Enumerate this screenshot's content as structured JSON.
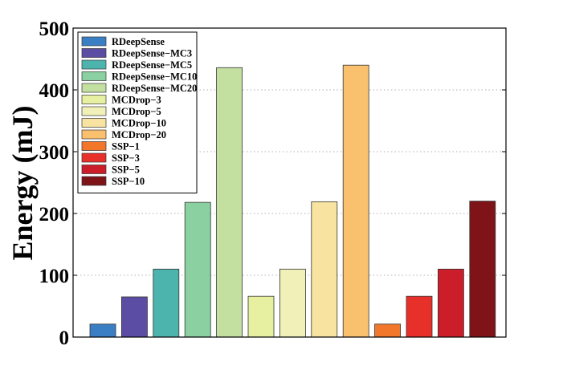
{
  "chart_data": {
    "type": "bar",
    "title": "",
    "xlabel": "",
    "ylabel": "Energy (mJ)",
    "ylim": [
      0,
      500
    ],
    "yticks": [
      0,
      100,
      200,
      300,
      400,
      500
    ],
    "grid": "dotted horizontal lines",
    "legend_position": "top-left",
    "series": [
      {
        "name": "RDeepSense",
        "value": 21,
        "color": "#3a7fc3"
      },
      {
        "name": "RDeepSense−MC3",
        "value": 65,
        "color": "#5a4da3"
      },
      {
        "name": "RDeepSense−MC5",
        "value": 110,
        "color": "#4db3ad"
      },
      {
        "name": "RDeepSense−MC10",
        "value": 218,
        "color": "#8ad0a0"
      },
      {
        "name": "RDeepSense−MC20",
        "value": 436,
        "color": "#c3e0a0"
      },
      {
        "name": "MCDrop−3",
        "value": 66,
        "color": "#e6f0a0"
      },
      {
        "name": "MCDrop−5",
        "value": 110,
        "color": "#f0f0b8"
      },
      {
        "name": "MCDrop−10",
        "value": 219,
        "color": "#f8e3a0"
      },
      {
        "name": "MCDrop−20",
        "value": 440,
        "color": "#f9c06e"
      },
      {
        "name": "SSP−1",
        "value": 21,
        "color": "#f2772a"
      },
      {
        "name": "SSP−3",
        "value": 66,
        "color": "#e8302a"
      },
      {
        "name": "SSP−5",
        "value": 110,
        "color": "#cc1e2a"
      },
      {
        "name": "SSP−10",
        "value": 220,
        "color": "#7e1418"
      }
    ]
  }
}
